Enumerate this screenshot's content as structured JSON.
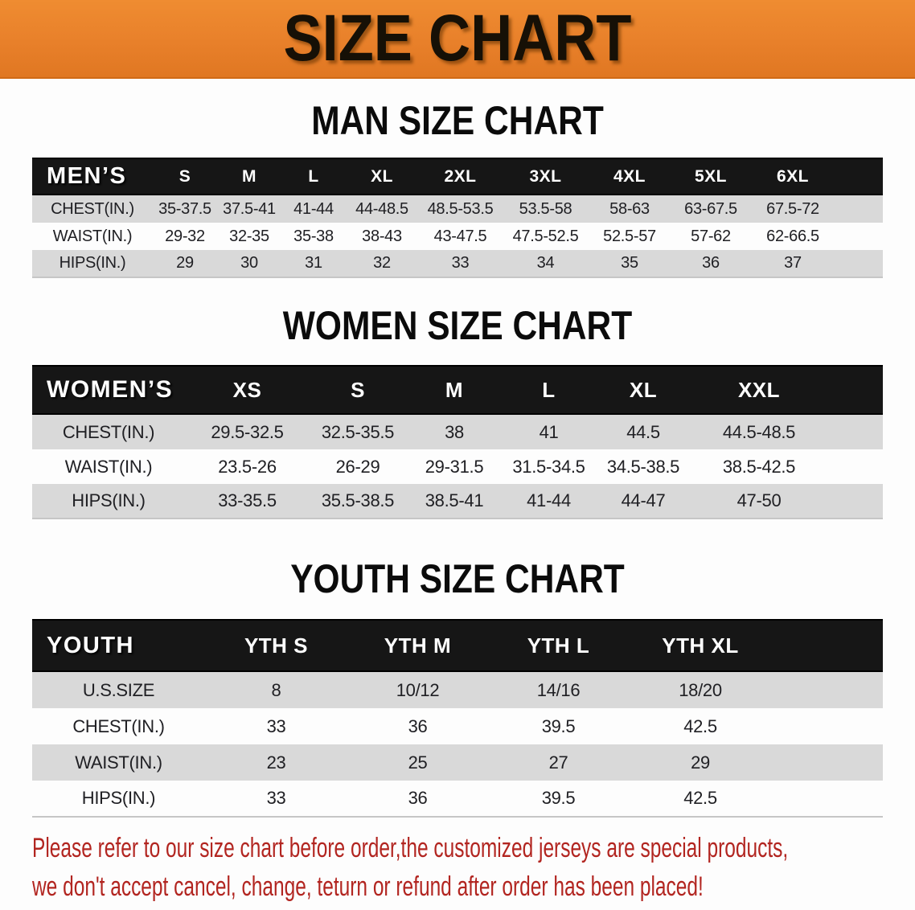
{
  "banner": {
    "title": "SIZE CHART"
  },
  "colors": {
    "banner_orange": "#E8802A",
    "table_header_black": "#161616",
    "row_stripe_gray": "#D9D9D9",
    "disclaimer_red": "#B22520"
  },
  "tables": [
    {
      "name": "men",
      "heading": "MAN SIZE CHART",
      "header": [
        "MEN’S",
        "S",
        "M",
        "L",
        "XL",
        "2XL",
        "3XL",
        "4XL",
        "5XL",
        "6XL"
      ],
      "rows": [
        [
          "CHEST(IN.)",
          "35-37.5",
          "37.5-41",
          "41-44",
          "44-48.5",
          "48.5-53.5",
          "53.5-58",
          "58-63",
          "63-67.5",
          "67.5-72"
        ],
        [
          "WAIST(IN.)",
          "29-32",
          "32-35",
          "35-38",
          "38-43",
          "43-47.5",
          "47.5-52.5",
          "52.5-57",
          "57-62",
          "62-66.5"
        ],
        [
          "HIPS(IN.)",
          "29",
          "30",
          "31",
          "32",
          "33",
          "34",
          "35",
          "36",
          "37"
        ]
      ]
    },
    {
      "name": "women",
      "heading": "WOMEN SIZE CHART",
      "header": [
        "WOMEN’S",
        "XS",
        "S",
        "M",
        "L",
        "XL",
        "XXL"
      ],
      "rows": [
        [
          "CHEST(IN.)",
          "29.5-32.5",
          "32.5-35.5",
          "38",
          "41",
          "44.5",
          "44.5-48.5"
        ],
        [
          "WAIST(IN.)",
          "23.5-26",
          "26-29",
          "29-31.5",
          "31.5-34.5",
          "34.5-38.5",
          "38.5-42.5"
        ],
        [
          "HIPS(IN.)",
          "33-35.5",
          "35.5-38.5",
          "38.5-41",
          "41-44",
          "44-47",
          "47-50"
        ]
      ]
    },
    {
      "name": "youth",
      "heading": "YOUTH SIZE CHART",
      "header": [
        "YOUTH",
        "YTH S",
        "YTH M",
        "YTH L",
        "YTH XL"
      ],
      "rows": [
        [
          "U.S.SIZE",
          "8",
          "10/12",
          "14/16",
          "18/20"
        ],
        [
          "CHEST(IN.)",
          "33",
          "36",
          "39.5",
          "42.5"
        ],
        [
          "WAIST(IN.)",
          "23",
          "25",
          "27",
          "29"
        ],
        [
          "HIPS(IN.)",
          "33",
          "36",
          "39.5",
          "42.5"
        ]
      ]
    }
  ],
  "disclaimer": {
    "line1": "Please refer to our size chart before order,the customized jerseys are special products,",
    "line2": "we don't accept cancel, change, teturn or refund after order has been placed!"
  }
}
